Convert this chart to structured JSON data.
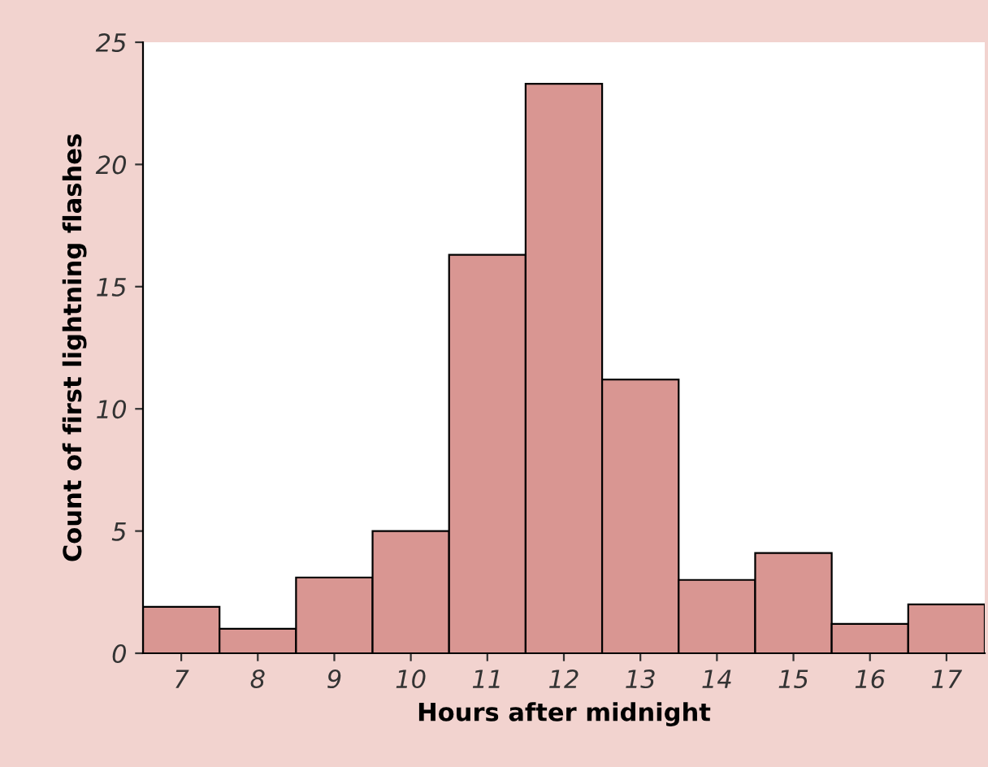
{
  "chart_data": {
    "type": "histogram",
    "xlabel": "Hours after midnight",
    "ylabel": "Count of first lightning flashes",
    "bins": [
      6.5,
      7.5,
      8.5,
      9.5,
      10.5,
      11.5,
      12.5,
      13.5,
      14.5,
      15.5,
      16.5,
      17.5
    ],
    "values": [
      1.9,
      1.0,
      3.1,
      5.0,
      16.3,
      23.3,
      11.2,
      3.0,
      4.1,
      1.2,
      2.0
    ],
    "color": "#d99692",
    "xlim": [
      6.5,
      17.5
    ],
    "xticks": [
      7,
      8,
      9,
      10,
      11,
      12,
      13,
      14,
      15,
      16,
      17
    ],
    "ylim": [
      0,
      25
    ],
    "yticks": [
      0,
      5,
      10,
      15,
      20,
      25
    ],
    "grid": false
  }
}
